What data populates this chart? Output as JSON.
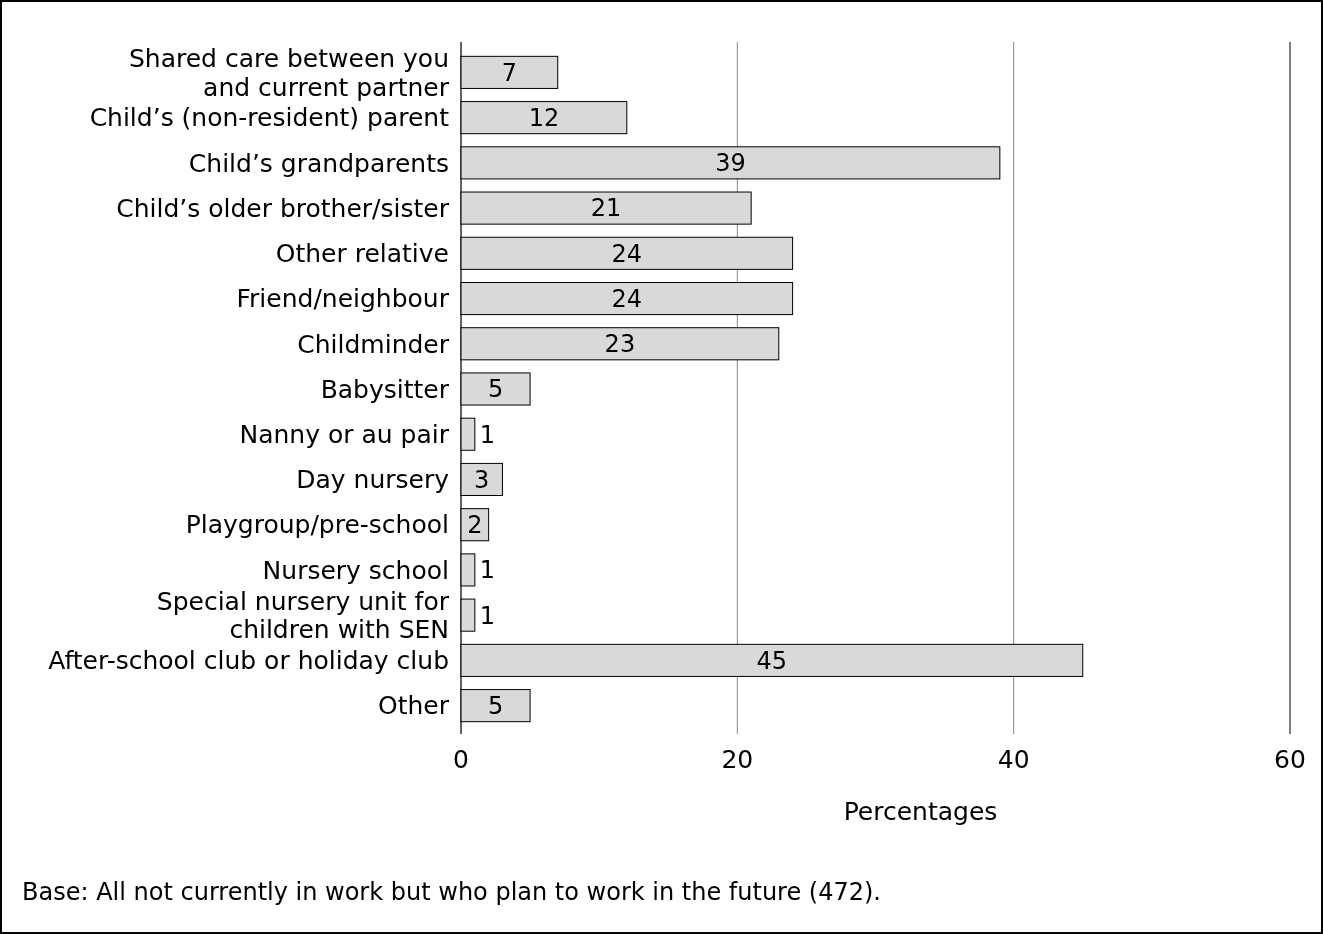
{
  "chart_data": {
    "type": "bar",
    "orientation": "horizontal",
    "xlabel": "Percentages",
    "categories": [
      "Shared care between you\nand current partner",
      "Child’s (non-resident) parent",
      "Child’s grandparents",
      "Child’s older brother/sister",
      "Other relative",
      "Friend/neighbour",
      "Childminder",
      "Babysitter",
      "Nanny or au pair",
      "Day nursery",
      "Playgroup/pre-school",
      "Nursery school",
      "Special nursery unit for\nchildren with SEN",
      "After-school club or holiday club",
      "Other"
    ],
    "values": [
      7,
      12,
      39,
      21,
      24,
      24,
      23,
      5,
      1,
      3,
      2,
      1,
      1,
      45,
      5
    ],
    "color": "#d9d9d9",
    "xlim": [
      0,
      60
    ],
    "xticks": [
      0,
      20,
      40,
      60
    ],
    "grid": "x",
    "data_labels": true,
    "annotations": [
      "Base: All not currently in work but who plan to work in the future (472)."
    ]
  }
}
